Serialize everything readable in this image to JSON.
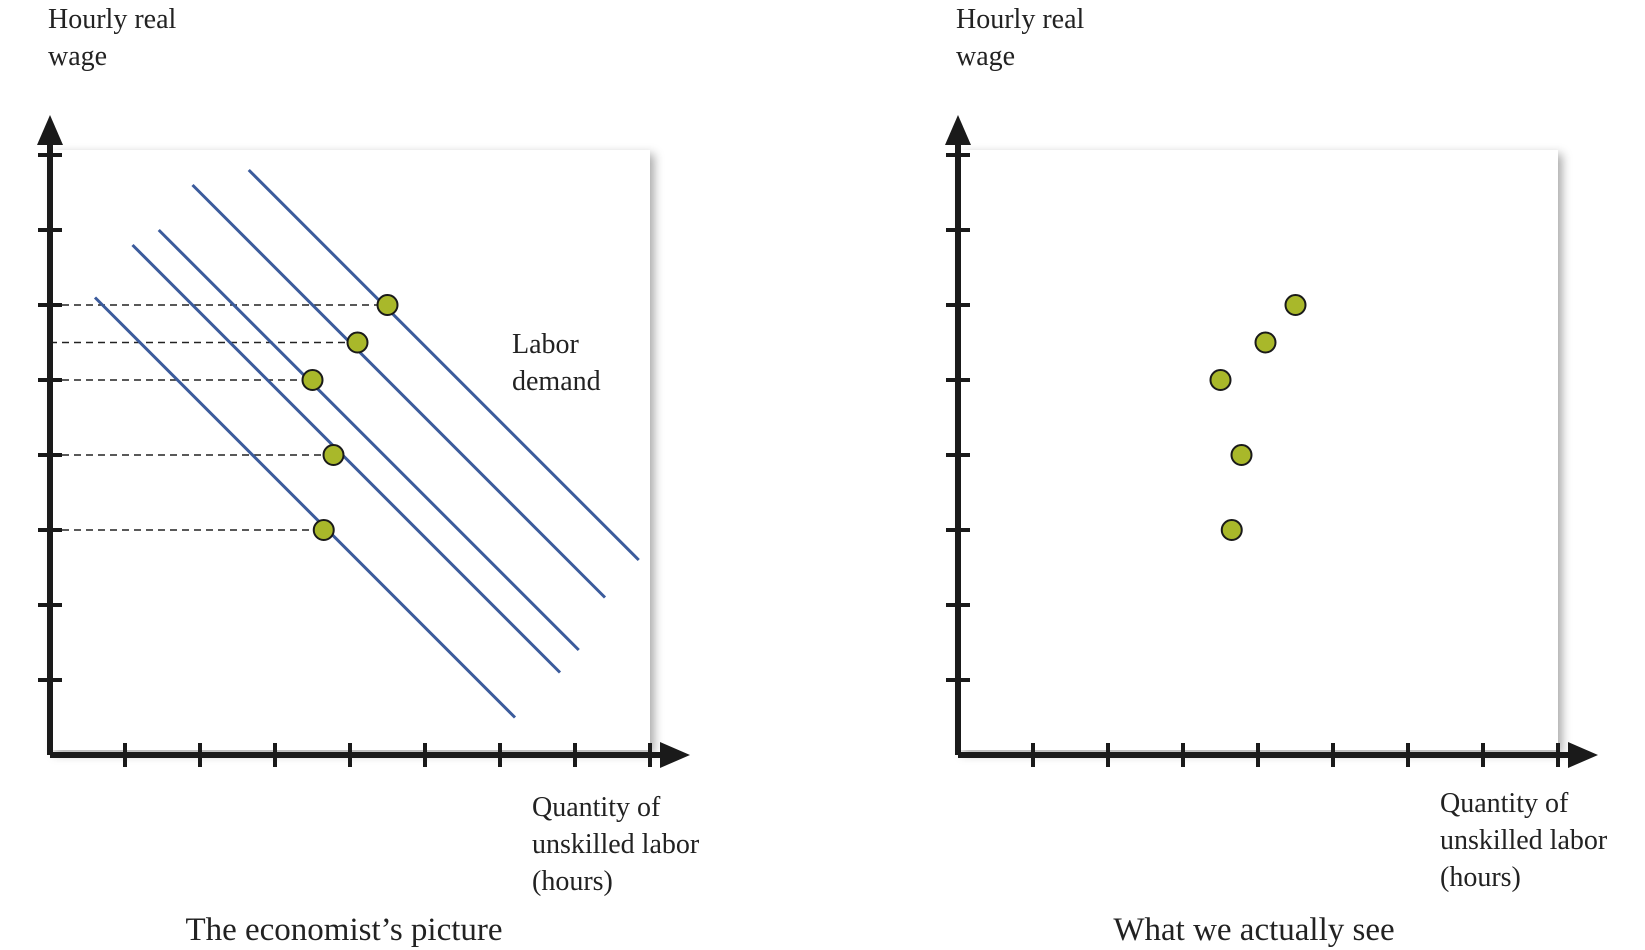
{
  "colors": {
    "line": "#3b5b9c",
    "point_fill": "#a9b82a",
    "axis": "#1a1a1a",
    "panel_bg": "#ffffff",
    "shadow": "#9a9a9a"
  },
  "chart_data": [
    {
      "type": "line",
      "title": "The economist’s picture",
      "ylabel": [
        "Hourly real",
        "wage"
      ],
      "xlabel": [
        "Quantity of",
        "unskilled labor",
        "(hours)"
      ],
      "annotations": [
        {
          "text": [
            "Labor",
            "demand"
          ]
        }
      ],
      "xlim": [
        0,
        8
      ],
      "ylim": [
        0,
        8
      ],
      "x_ticks": 8,
      "y_ticks": 8,
      "grid": false,
      "legend": "none",
      "series": [
        {
          "x": [
            0.6,
            6.2
          ],
          "y": [
            6.1,
            0.5
          ]
        },
        {
          "x": [
            1.1,
            6.8
          ],
          "y": [
            6.8,
            1.1
          ]
        },
        {
          "x": [
            1.45,
            7.05
          ],
          "y": [
            7.0,
            1.4
          ]
        },
        {
          "x": [
            1.9,
            7.4
          ],
          "y": [
            7.6,
            2.1
          ]
        },
        {
          "x": [
            2.65,
            7.85
          ],
          "y": [
            7.8,
            2.6
          ]
        }
      ],
      "points": [
        {
          "x": 3.65,
          "y": 3.0
        },
        {
          "x": 3.78,
          "y": 4.0
        },
        {
          "x": 3.5,
          "y": 5.0
        },
        {
          "x": 4.1,
          "y": 5.5
        },
        {
          "x": 4.5,
          "y": 6.0
        }
      ],
      "dashed_guides": true
    },
    {
      "type": "scatter",
      "title": "What we actually see",
      "ylabel": [
        "Hourly real",
        "wage"
      ],
      "xlabel": [
        "Quantity of",
        "unskilled labor",
        "(hours)"
      ],
      "xlim": [
        0,
        8
      ],
      "ylim": [
        0,
        8
      ],
      "x_ticks": 8,
      "y_ticks": 8,
      "grid": false,
      "legend": "none",
      "points": [
        {
          "x": 3.65,
          "y": 3.0
        },
        {
          "x": 3.78,
          "y": 4.0
        },
        {
          "x": 3.5,
          "y": 5.0
        },
        {
          "x": 4.1,
          "y": 5.5
        },
        {
          "x": 4.5,
          "y": 6.0
        }
      ]
    }
  ]
}
